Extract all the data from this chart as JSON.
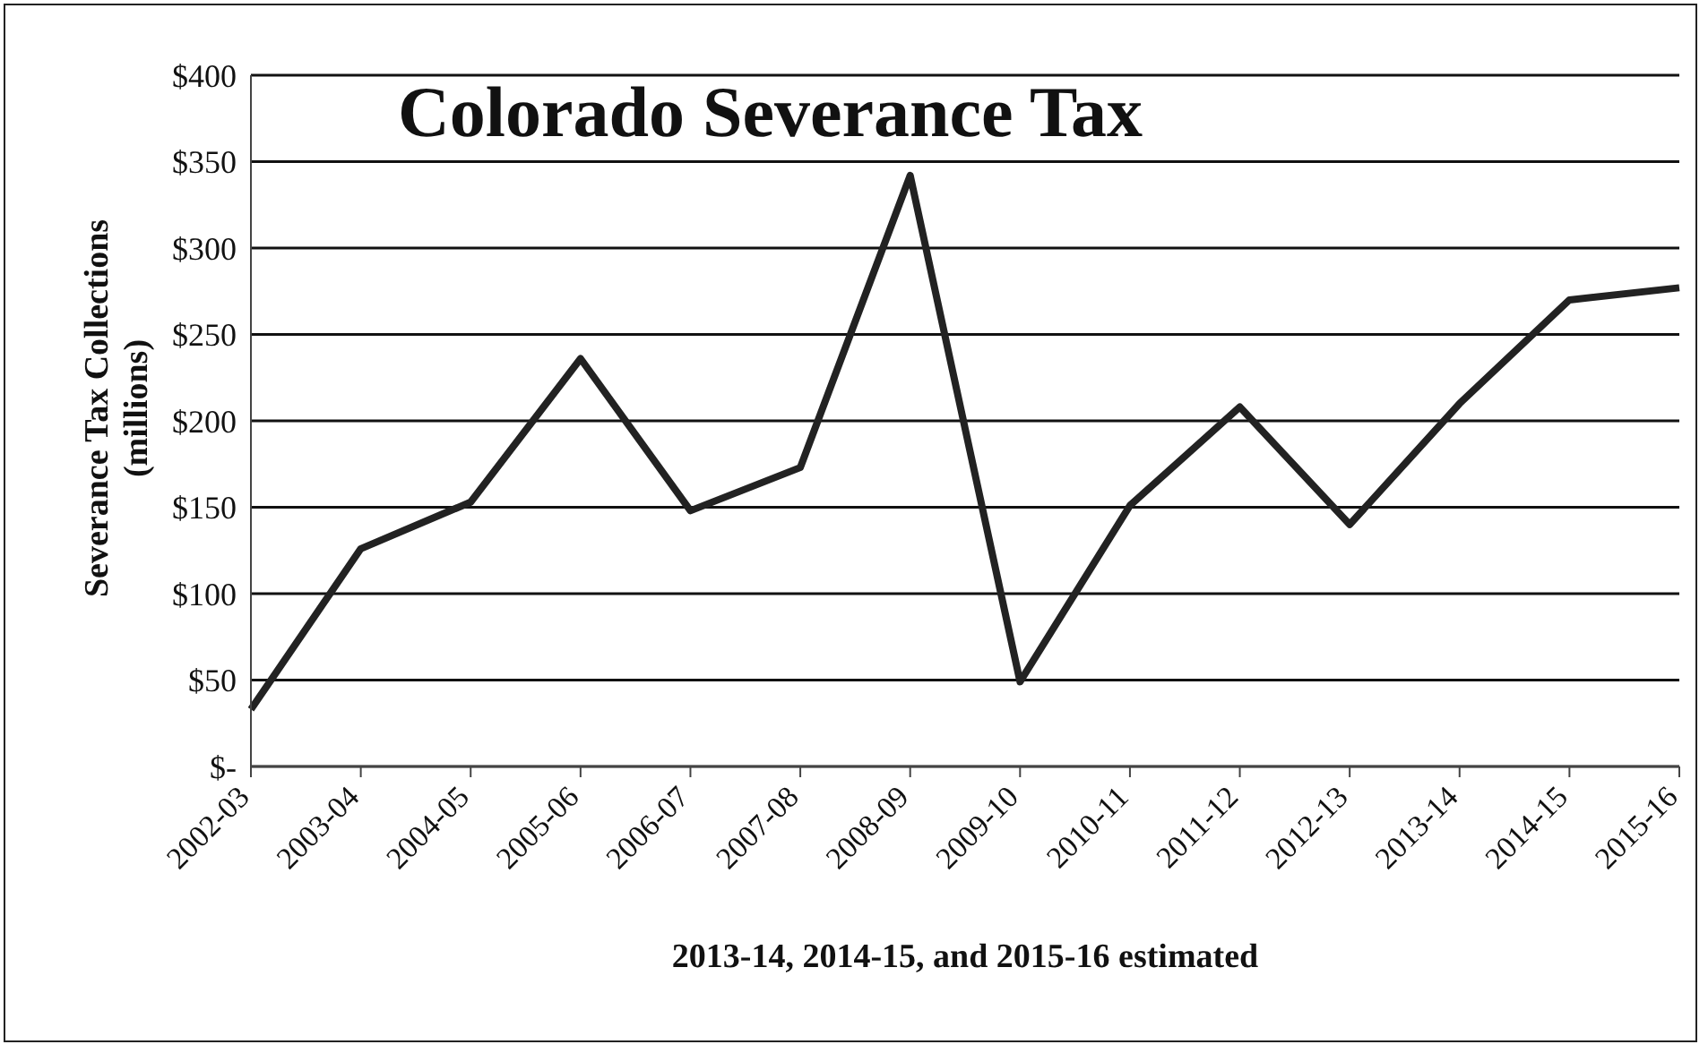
{
  "chart_data": {
    "type": "line",
    "title": "Colorado Severance Tax",
    "ylabel": "Severance Tax Collections (millions)",
    "xlabel": "2013-14, 2014-15, and 2015-16 estimated",
    "categories": [
      "2002-03",
      "2003-04",
      "2004-05",
      "2005-06",
      "2006-07",
      "2007-08",
      "2008-09",
      "2009-10",
      "2010-11",
      "2011-12",
      "2012-13",
      "2013-14",
      "2014-15",
      "2015-16"
    ],
    "series": [
      {
        "color": "#222222",
        "values": [
          33,
          126,
          153,
          236,
          148,
          173,
          342,
          49,
          151,
          208,
          140,
          210,
          270,
          277
        ]
      }
    ],
    "ylim": [
      0,
      400
    ],
    "yticks": [
      {
        "value": 0,
        "label": "$-"
      },
      {
        "value": 50,
        "label": "$50"
      },
      {
        "value": 100,
        "label": "$100"
      },
      {
        "value": 150,
        "label": "$150"
      },
      {
        "value": 200,
        "label": "$200"
      },
      {
        "value": 250,
        "label": "$250"
      },
      {
        "value": 300,
        "label": "$300"
      },
      {
        "value": 350,
        "label": "$350"
      },
      {
        "value": 400,
        "label": "$400"
      }
    ],
    "grid": "y",
    "marker": "none",
    "line_style": "solid",
    "legend": false
  }
}
